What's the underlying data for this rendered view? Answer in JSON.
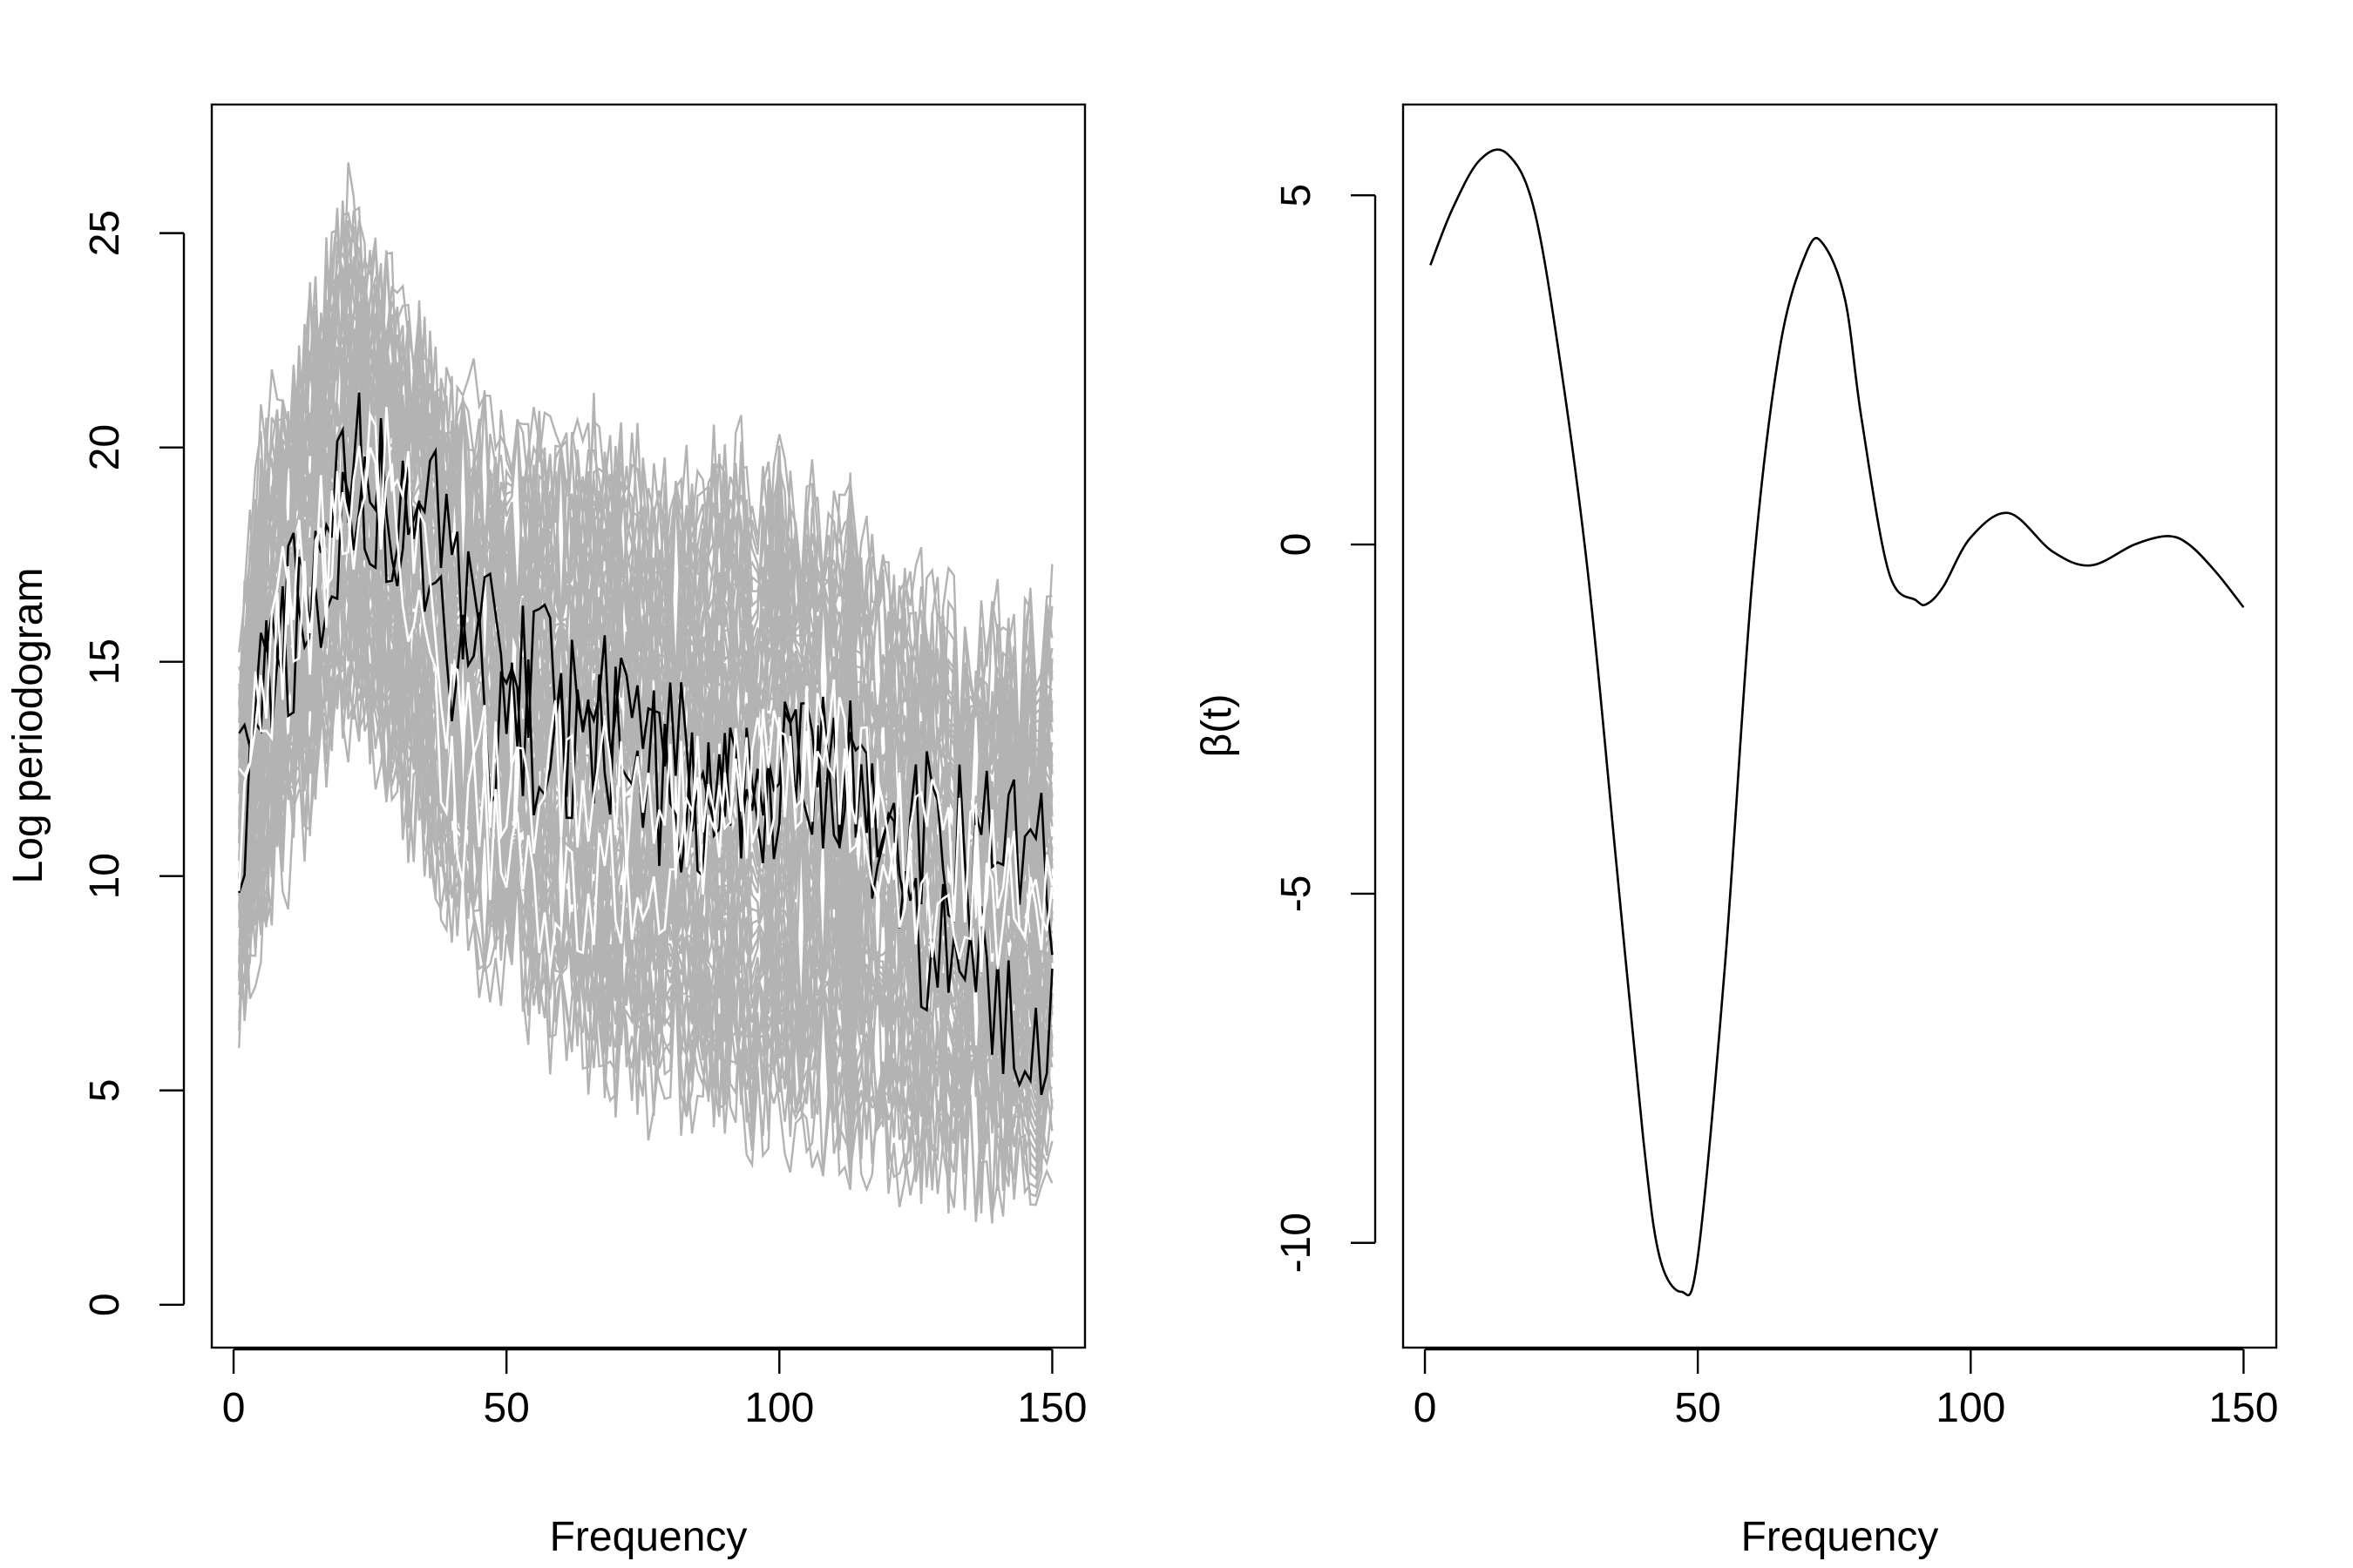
{
  "chart_data": [
    {
      "type": "line",
      "title": "",
      "xlabel": "Frequency",
      "ylabel": "Log periodogram",
      "xlim": [
        -4,
        156
      ],
      "ylim": [
        -1,
        28
      ],
      "x_ticks": [
        0,
        50,
        100,
        150
      ],
      "x_tick_labels": [
        "0",
        "50",
        "100",
        "150"
      ],
      "y_ticks": [
        0,
        5,
        10,
        15,
        20,
        25
      ],
      "y_tick_labels": [
        "0",
        "5",
        "10",
        "15",
        "20",
        "25"
      ],
      "grid": false,
      "legend": "none",
      "n_points": 150,
      "x_range": [
        1,
        150
      ],
      "n_background_curves": 60,
      "background_envelope": {
        "x": [
          1,
          5,
          10,
          15,
          20,
          25,
          30,
          40,
          50,
          60,
          70,
          80,
          90,
          100,
          110,
          120,
          130,
          140,
          150
        ],
        "upper": [
          16,
          21,
          22.5,
          24,
          26.5,
          25.5,
          24.5,
          22,
          21,
          21,
          21,
          19.5,
          20.5,
          20,
          19.5,
          18,
          17,
          16.5,
          17.5
        ],
        "lower": [
          5,
          7,
          9,
          10.5,
          12,
          12,
          10,
          8,
          6,
          5,
          4,
          3.5,
          3,
          3,
          2.5,
          2,
          1.5,
          1.5,
          2
        ]
      },
      "series": [
        {
          "color": "#000000",
          "trend": {
            "x": [
              1,
              5,
              10,
              15,
              20,
              25,
              30,
              35,
              40,
              50,
              60,
              70,
              80,
              90,
              100,
              110,
              120,
              130,
              140,
              150
            ],
            "y": [
              12,
              16,
              16.5,
              17.5,
              19.5,
              19.5,
              19,
              19,
              16.5,
              14.5,
              14,
              14,
              13,
              12,
              12.5,
              12.5,
              11.5,
              11,
              10.5,
              10
            ]
          },
          "noise": 1.4,
          "seed": 11
        },
        {
          "color": "#000000",
          "trend": {
            "x": [
              1,
              5,
              10,
              15,
              20,
              25,
              30,
              35,
              40,
              50,
              60,
              70,
              80,
              90,
              100,
              110,
              120,
              130,
              140,
              150
            ],
            "y": [
              10,
              15,
              15.5,
              16.5,
              18.5,
              18.5,
              18,
              18,
              15.5,
              13,
              13,
              13,
              12,
              11.5,
              12,
              12,
              10,
              8,
              7,
              6
            ]
          },
          "noise": 1.3,
          "seed": 23
        },
        {
          "color": "#ffffff",
          "trend": {
            "x": [
              1,
              5,
              10,
              15,
              20,
              25,
              30,
              35,
              40,
              50,
              60,
              70,
              80,
              90,
              100,
              110,
              120,
              130,
              140,
              150
            ],
            "y": [
              11,
              15,
              17,
              17.5,
              19,
              19.5,
              19,
              17,
              14,
              12,
              12.5,
              12,
              11.5,
              12,
              12.5,
              13,
              11,
              10.5,
              10,
              10
            ]
          },
          "noise": 1.1,
          "seed": 37
        },
        {
          "color": "#ffffff",
          "trend": {
            "x": [
              1,
              5,
              10,
              15,
              20,
              25,
              30,
              35,
              40,
              50,
              60,
              70,
              80,
              90,
              100,
              110,
              120,
              130,
              140,
              150
            ],
            "y": [
              11,
              14,
              16,
              16.5,
              18,
              18.5,
              18,
              15,
              12,
              10,
              9.5,
              10,
              10.5,
              11.5,
              12.5,
              13,
              10.5,
              9.5,
              9.5,
              9.5
            ]
          },
          "noise": 1.1,
          "seed": 53
        }
      ]
    },
    {
      "type": "line",
      "title": "",
      "xlabel": "Frequency",
      "ylabel": "β(t)",
      "xlim": [
        -4,
        156
      ],
      "ylim": [
        -11.5,
        6.3
      ],
      "x_ticks": [
        0,
        50,
        100,
        150
      ],
      "x_tick_labels": [
        "0",
        "50",
        "100",
        "150"
      ],
      "y_ticks": [
        -10,
        -5,
        0,
        5
      ],
      "y_tick_labels": [
        "-10",
        "-5",
        "0",
        "5"
      ],
      "grid": false,
      "legend": "none",
      "series": [
        {
          "color": "#000000",
          "x": [
            1,
            5,
            10,
            15,
            20,
            25,
            30,
            35,
            40,
            43,
            47,
            50,
            55,
            60,
            65,
            70,
            73,
            77,
            80,
            85,
            90,
            92,
            95,
            100,
            107,
            115,
            122,
            130,
            136,
            140,
            145,
            150
          ],
          "y": [
            4.0,
            4.8,
            5.5,
            5.6,
            4.8,
            2.5,
            -0.5,
            -4.5,
            -8.5,
            -10.2,
            -10.7,
            -10.2,
            -6.0,
            -0.5,
            2.8,
            4.2,
            4.3,
            3.5,
            1.8,
            -0.4,
            -0.8,
            -0.85,
            -0.6,
            0.1,
            0.45,
            -0.1,
            -0.3,
            0.0,
            0.12,
            0.0,
            -0.4,
            -0.9
          ]
        }
      ]
    }
  ]
}
